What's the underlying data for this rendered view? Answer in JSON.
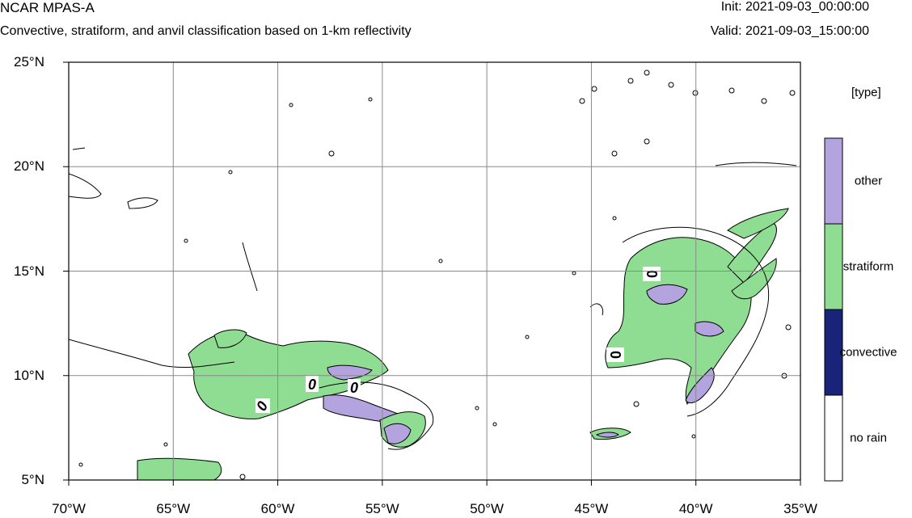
{
  "header": {
    "title": "NCAR MPAS-A",
    "subtitle": "Convective, stratiform, and anvil classification based on 1-km reflectivity",
    "init": "Init: 2021-09-03_00:00:00",
    "valid": "Valid: 2021-09-03_15:00:00"
  },
  "axes": {
    "x_ticks": [
      "70°W",
      "65°W",
      "60°W",
      "55°W",
      "50°W",
      "45°W",
      "40°W",
      "35°W"
    ],
    "x_values": [
      -70,
      -65,
      -60,
      -55,
      -50,
      -45,
      -40,
      -35
    ],
    "y_ticks": [
      "25°N",
      "20°N",
      "15°N",
      "10°N",
      "5°N"
    ],
    "y_values": [
      25,
      20,
      15,
      10,
      5
    ],
    "lon_range": [
      -70,
      -35
    ],
    "lat_range": [
      5,
      25
    ],
    "grid": true
  },
  "legend": {
    "title": "[type]",
    "entries": [
      {
        "label": "other",
        "color": "#b3a3de"
      },
      {
        "label": "stratiform",
        "color": "#8fdc93"
      },
      {
        "label": "convective",
        "color": "#1a237a"
      },
      {
        "label": "no rain",
        "color": "#ffffff"
      }
    ]
  },
  "contour_labels": [
    "0",
    "0",
    "0",
    "0",
    "0"
  ],
  "colors": {
    "other": "#b3a3de",
    "stratiform": "#8fdc93",
    "convective": "#1a237a",
    "coast": "#000000",
    "grid": "#8a8a8a"
  }
}
